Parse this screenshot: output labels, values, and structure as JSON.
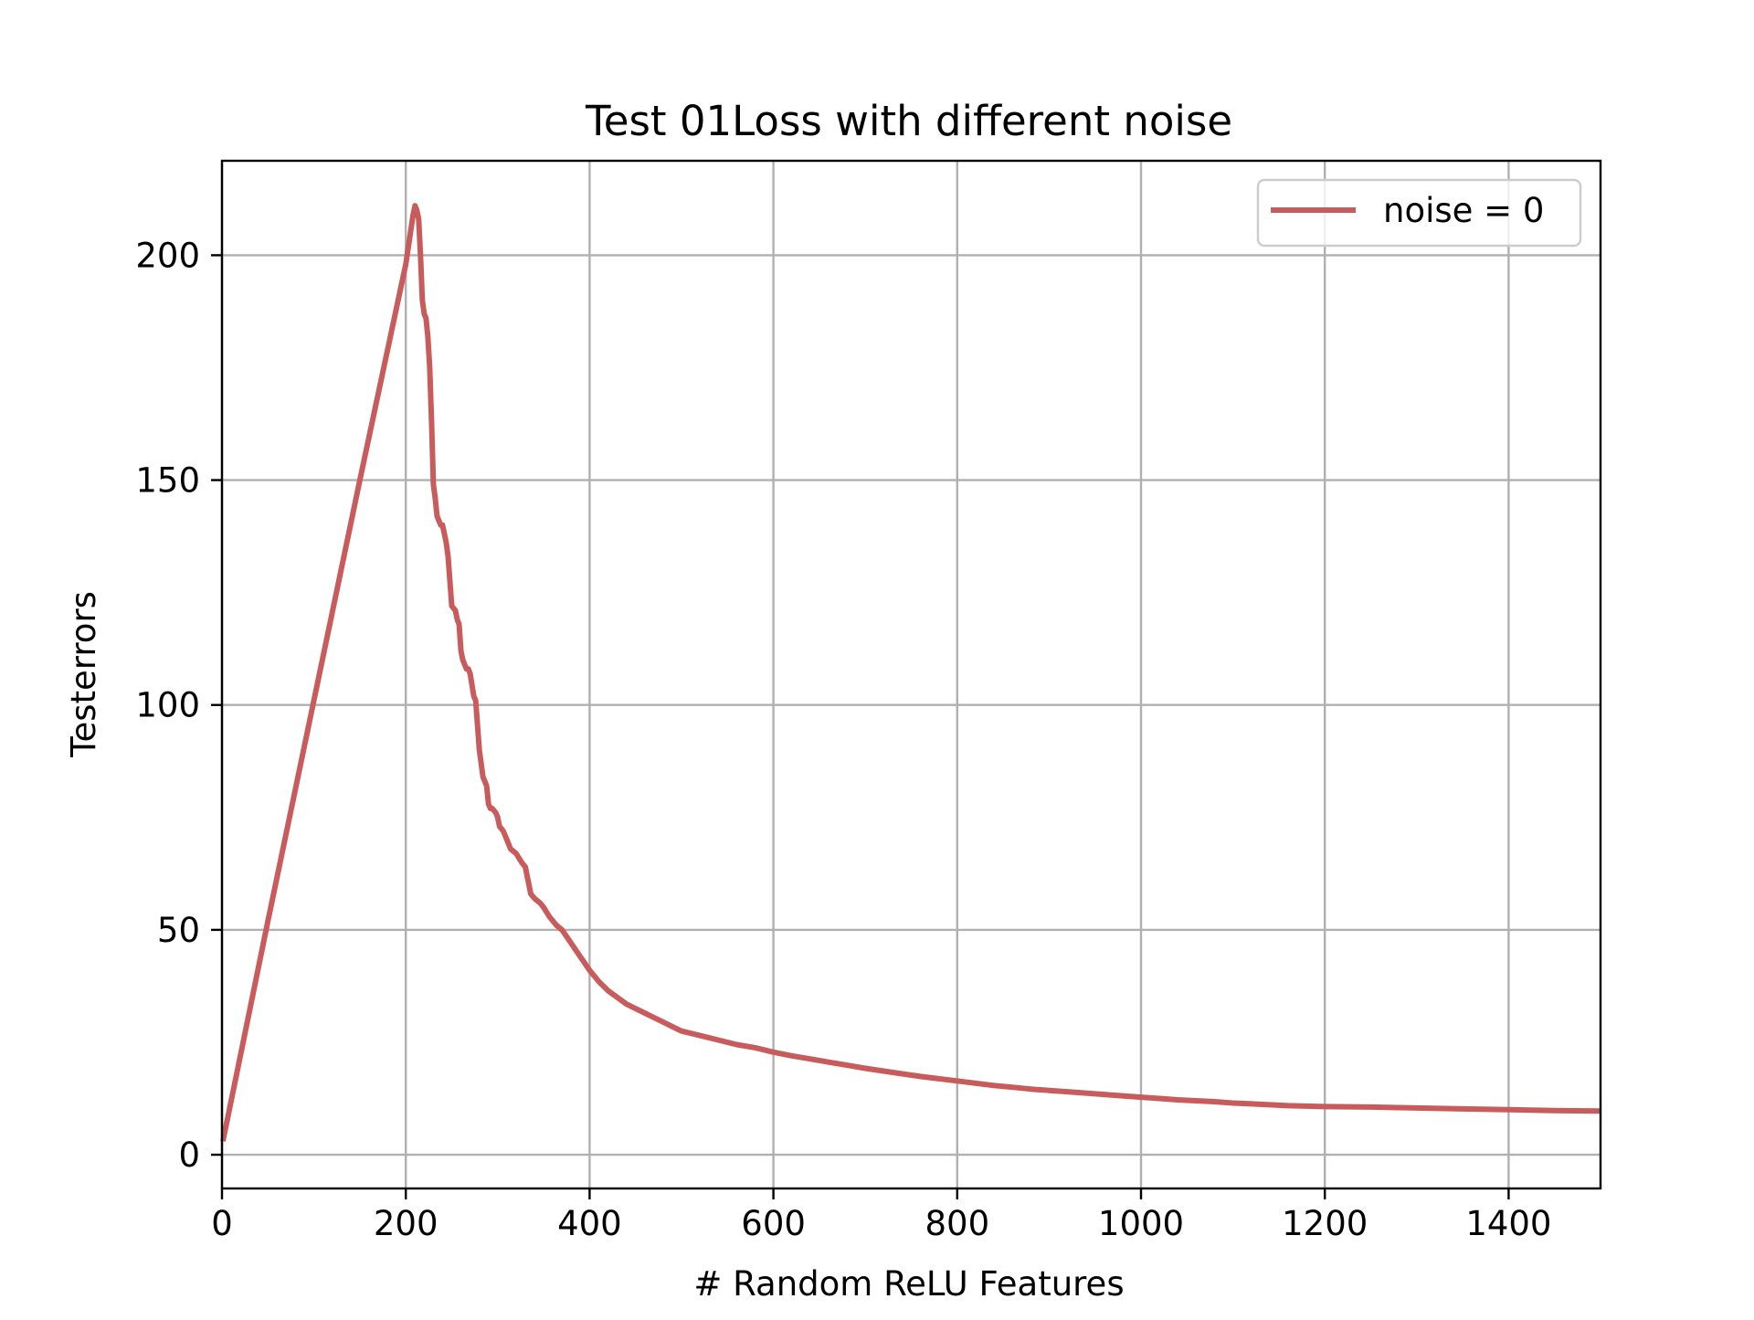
{
  "chart_data": {
    "type": "line",
    "title": "Test 01Loss with different noise",
    "xlabel": "# Random ReLU Features",
    "ylabel": "Testerrors",
    "xlim": [
      0,
      1500
    ],
    "ylim": [
      -7.5,
      221
    ],
    "xticks": [
      0,
      200,
      400,
      600,
      800,
      1000,
      1200,
      1400
    ],
    "yticks": [
      0,
      50,
      100,
      150,
      200
    ],
    "xtick_labels": [
      "0",
      "200",
      "400",
      "600",
      "800",
      "1000",
      "1200",
      "1400"
    ],
    "ytick_labels": [
      "0",
      "50",
      "100",
      "150",
      "200"
    ],
    "grid": true,
    "legend_position": "top-right",
    "series": [
      {
        "name": "noise = 0",
        "color": "#c85c5c",
        "x": [
          1,
          50,
          100,
          150,
          200,
          208,
          210,
          212,
          214,
          216,
          218,
          220,
          222,
          224,
          226,
          228,
          230,
          232,
          234,
          236,
          238,
          240,
          242,
          244,
          246,
          250,
          254,
          256,
          258,
          260,
          262,
          264,
          266,
          268,
          270,
          274,
          276,
          280,
          284,
          286,
          288,
          290,
          292,
          294,
          298,
          300,
          302,
          306,
          310,
          314,
          320,
          326,
          330,
          336,
          340,
          346,
          350,
          356,
          360,
          364,
          370,
          380,
          390,
          400,
          410,
          420,
          430,
          440,
          450,
          460,
          470,
          480,
          490,
          500,
          520,
          540,
          560,
          580,
          600,
          620,
          640,
          660,
          680,
          700,
          720,
          740,
          760,
          780,
          800,
          820,
          840,
          860,
          880,
          900,
          920,
          940,
          960,
          980,
          1000,
          1020,
          1040,
          1060,
          1080,
          1100,
          1120,
          1140,
          1160,
          1180,
          1200,
          1250,
          1300,
          1350,
          1400,
          1450,
          1500
        ],
        "y": [
          3,
          52,
          101,
          150,
          198,
          209,
          211,
          210,
          208,
          200,
          190,
          187,
          186,
          182,
          175,
          163,
          149,
          146,
          142,
          141,
          140,
          140,
          138,
          136,
          133,
          122,
          121,
          119,
          118,
          112,
          110,
          109,
          108,
          108,
          107,
          102,
          101,
          90,
          84,
          83,
          82,
          78,
          77,
          77,
          76,
          75,
          73,
          72,
          70,
          68,
          67,
          65,
          64,
          58,
          57,
          56,
          55,
          53,
          52,
          51,
          50,
          47,
          44,
          41,
          38.5,
          36.5,
          35,
          33.5,
          32.5,
          31.5,
          30.5,
          29.5,
          28.5,
          27.5,
          26.5,
          25.5,
          24.5,
          23.8,
          22.8,
          22,
          21.3,
          20.6,
          19.9,
          19.2,
          18.6,
          18,
          17.4,
          16.9,
          16.4,
          15.9,
          15.4,
          15,
          14.6,
          14.3,
          14,
          13.7,
          13.4,
          13.1,
          12.8,
          12.5,
          12.2,
          12,
          11.8,
          11.5,
          11.3,
          11.1,
          10.9,
          10.8,
          10.7,
          10.6,
          10.4,
          10.2,
          10,
          9.8,
          9.7
        ]
      }
    ]
  }
}
